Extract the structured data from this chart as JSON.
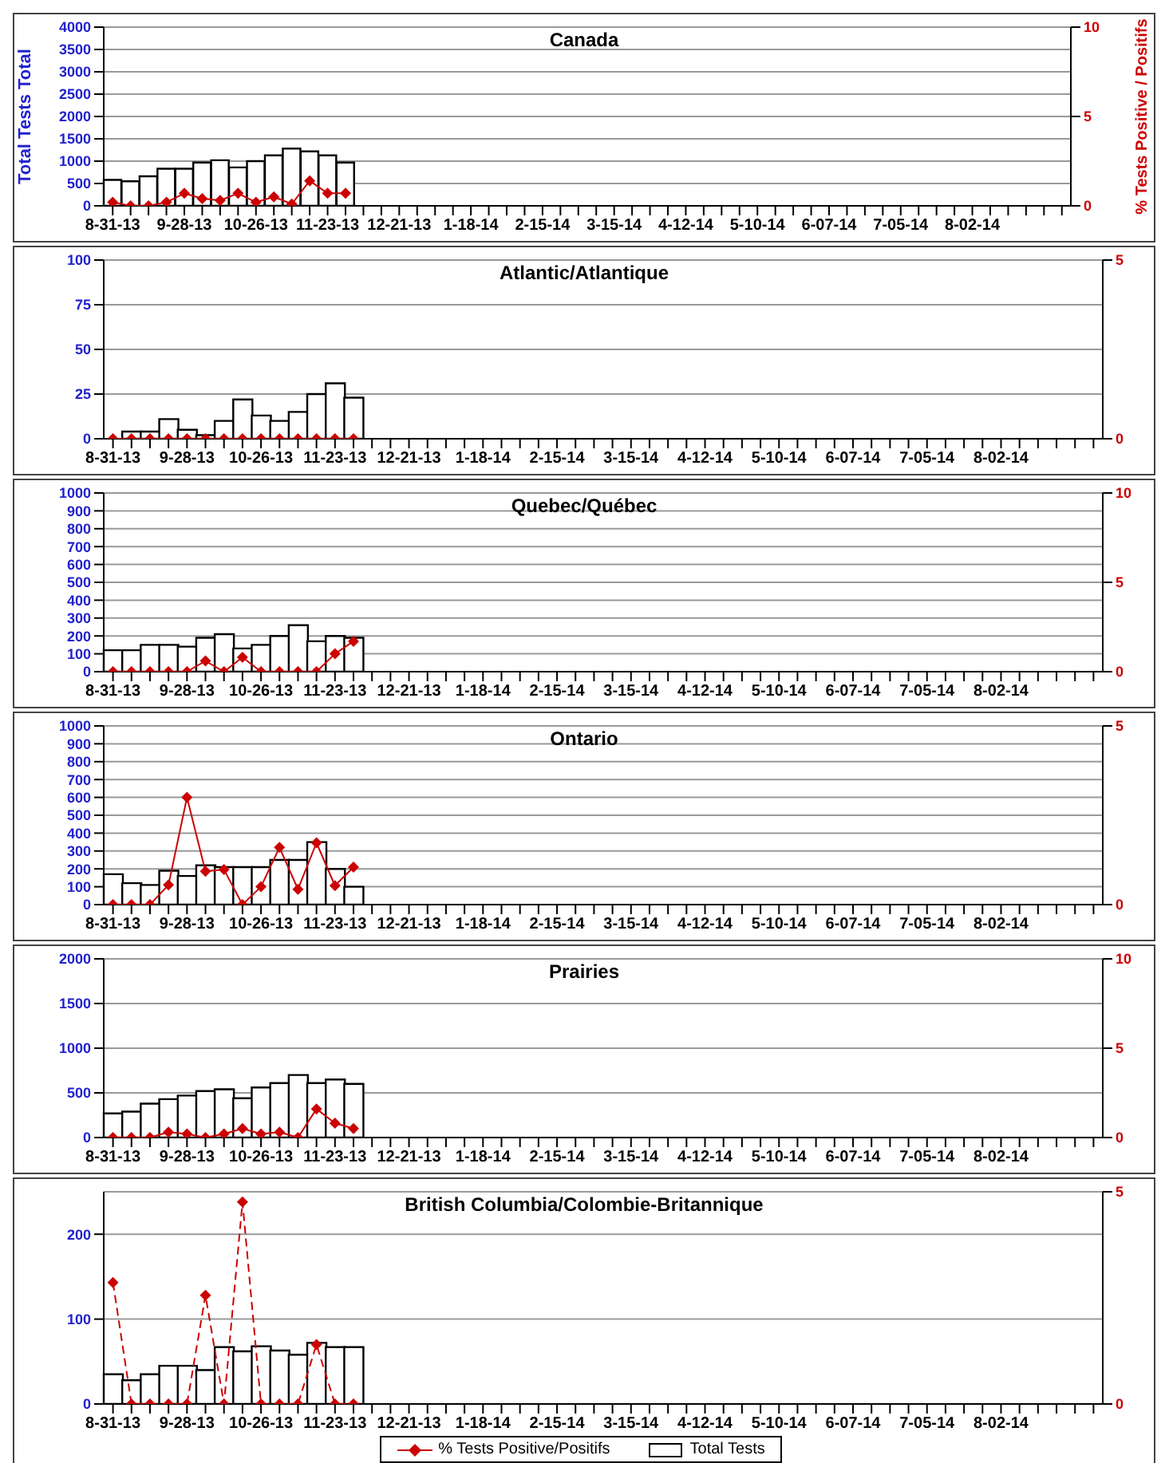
{
  "chart_data": [
    {
      "type": "bar",
      "title": "Canada",
      "ylabel": "Total Tests Total",
      "y2label": "% Tests Positive / Positifs",
      "categories": [
        "8-31-13",
        null,
        null,
        null,
        "9-28-13",
        null,
        null,
        null,
        "10-26-13",
        null,
        null,
        null,
        "11-23-13",
        null,
        null,
        null,
        "12-21-13",
        null,
        null,
        null,
        "1-18-14",
        null,
        null,
        null,
        "2-15-14",
        null,
        null,
        null,
        "3-15-14",
        null,
        null,
        null,
        "4-12-14",
        null,
        null,
        null,
        "5-10-14",
        null,
        null,
        null,
        "6-07-14",
        null,
        null,
        null,
        "7-05-14",
        null,
        null,
        null,
        "8-02-14",
        null,
        null,
        null,
        null,
        null
      ],
      "ylim": [
        0,
        4000
      ],
      "yticks": [
        0,
        500,
        1000,
        1500,
        2000,
        2500,
        3000,
        3500,
        4000
      ],
      "y2lim": [
        0,
        10
      ],
      "y2ticks": [
        0,
        5,
        10
      ],
      "grid": "y",
      "series": [
        {
          "color": "#ffffff",
          "values": [
            580,
            550,
            660,
            830,
            830,
            970,
            1020,
            860,
            1000,
            1130,
            1280,
            1220,
            1130,
            970,
            null,
            null,
            null,
            null,
            null,
            null,
            null,
            null,
            null,
            null,
            null,
            null,
            null,
            null,
            null,
            null,
            null,
            null,
            null,
            null,
            null,
            null,
            null,
            null,
            null,
            null,
            null,
            null,
            null,
            null,
            null,
            null,
            null,
            null,
            null,
            null,
            null,
            null,
            null,
            null
          ]
        },
        {
          "type": "line",
          "axis": "y2",
          "color": "#cc0000",
          "marker": "diamond",
          "line_style": "solid",
          "values": [
            0.2,
            0,
            0,
            0.2,
            0.7,
            0.4,
            0.3,
            0.7,
            0.2,
            0.5,
            0.1,
            1.4,
            0.7,
            0.7,
            null,
            null,
            null,
            null,
            null,
            null,
            null,
            null,
            null,
            null,
            null,
            null,
            null,
            null,
            null,
            null,
            null,
            null,
            null,
            null,
            null,
            null,
            null,
            null,
            null,
            null,
            null,
            null,
            null,
            null,
            null,
            null,
            null,
            null,
            null,
            null,
            null,
            null,
            null,
            null
          ]
        }
      ]
    },
    {
      "type": "bar",
      "title": "Atlantic/Atlantique",
      "categories": [
        "8-31-13",
        null,
        null,
        null,
        "9-28-13",
        null,
        null,
        null,
        "10-26-13",
        null,
        null,
        null,
        "11-23-13",
        null,
        null,
        null,
        "12-21-13",
        null,
        null,
        null,
        "1-18-14",
        null,
        null,
        null,
        "2-15-14",
        null,
        null,
        null,
        "3-15-14",
        null,
        null,
        null,
        "4-12-14",
        null,
        null,
        null,
        "5-10-14",
        null,
        null,
        null,
        "6-07-14",
        null,
        null,
        null,
        "7-05-14",
        null,
        null,
        null,
        "8-02-14",
        null,
        null,
        null,
        null,
        null
      ],
      "ylim": [
        0,
        100
      ],
      "yticks": [
        0,
        25,
        50,
        75,
        100
      ],
      "y2lim": [
        0,
        5
      ],
      "y2ticks": [
        0,
        5
      ],
      "grid": "y",
      "series": [
        {
          "color": "#ffffff",
          "values": [
            null,
            4,
            4,
            11,
            5,
            2,
            10,
            22,
            13,
            10,
            15,
            25,
            31,
            23,
            null,
            null,
            null,
            null,
            null,
            null,
            null,
            null,
            null,
            null,
            null,
            null,
            null,
            null,
            null,
            null,
            null,
            null,
            null,
            null,
            null,
            null,
            null,
            null,
            null,
            null,
            null,
            null,
            null,
            null,
            null,
            null,
            null,
            null,
            null,
            null,
            null,
            null,
            null,
            null
          ]
        },
        {
          "type": "line",
          "axis": "y2",
          "color": "#cc0000",
          "marker": "diamond",
          "line_style": "solid",
          "values": [
            0,
            0,
            0,
            0,
            0,
            0,
            0,
            0,
            0,
            0,
            0,
            0,
            0,
            0,
            null,
            null,
            null,
            null,
            null,
            null,
            null,
            null,
            null,
            null,
            null,
            null,
            null,
            null,
            null,
            null,
            null,
            null,
            null,
            null,
            null,
            null,
            null,
            null,
            null,
            null,
            null,
            null,
            null,
            null,
            null,
            null,
            null,
            null,
            null,
            null,
            null,
            null,
            null,
            null
          ]
        }
      ]
    },
    {
      "type": "bar",
      "title": "Quebec/Québec",
      "categories": [
        "8-31-13",
        null,
        null,
        null,
        "9-28-13",
        null,
        null,
        null,
        "10-26-13",
        null,
        null,
        null,
        "11-23-13",
        null,
        null,
        null,
        "12-21-13",
        null,
        null,
        null,
        "1-18-14",
        null,
        null,
        null,
        "2-15-14",
        null,
        null,
        null,
        "3-15-14",
        null,
        null,
        null,
        "4-12-14",
        null,
        null,
        null,
        "5-10-14",
        null,
        null,
        null,
        "6-07-14",
        null,
        null,
        null,
        "7-05-14",
        null,
        null,
        null,
        "8-02-14",
        null,
        null,
        null,
        null,
        null
      ],
      "ylim": [
        0,
        1000
      ],
      "yticks": [
        0,
        100,
        200,
        300,
        400,
        500,
        600,
        700,
        800,
        900,
        1000
      ],
      "y2lim": [
        0,
        10
      ],
      "y2ticks": [
        0,
        5,
        10
      ],
      "grid": "y",
      "series": [
        {
          "color": "#ffffff",
          "values": [
            120,
            120,
            150,
            150,
            140,
            190,
            210,
            130,
            150,
            200,
            260,
            170,
            200,
            190,
            null,
            null,
            null,
            null,
            null,
            null,
            null,
            null,
            null,
            null,
            null,
            null,
            null,
            null,
            null,
            null,
            null,
            null,
            null,
            null,
            null,
            null,
            null,
            null,
            null,
            null,
            null,
            null,
            null,
            null,
            null,
            null,
            null,
            null,
            null,
            null,
            null,
            null,
            null,
            null
          ]
        },
        {
          "type": "line",
          "axis": "y2",
          "color": "#cc0000",
          "marker": "diamond",
          "line_style": "solid",
          "values": [
            0,
            0,
            0,
            0,
            0,
            0.6,
            0,
            0.8,
            0,
            0,
            0,
            0,
            1.0,
            1.7,
            null,
            null,
            null,
            null,
            null,
            null,
            null,
            null,
            null,
            null,
            null,
            null,
            null,
            null,
            null,
            null,
            null,
            null,
            null,
            null,
            null,
            null,
            null,
            null,
            null,
            null,
            null,
            null,
            null,
            null,
            null,
            null,
            null,
            null,
            null,
            null,
            null,
            null,
            null,
            null
          ]
        }
      ]
    },
    {
      "type": "bar",
      "title": "Ontario",
      "categories": [
        "8-31-13",
        null,
        null,
        null,
        "9-28-13",
        null,
        null,
        null,
        "10-26-13",
        null,
        null,
        null,
        "11-23-13",
        null,
        null,
        null,
        "12-21-13",
        null,
        null,
        null,
        "1-18-14",
        null,
        null,
        null,
        "2-15-14",
        null,
        null,
        null,
        "3-15-14",
        null,
        null,
        null,
        "4-12-14",
        null,
        null,
        null,
        "5-10-14",
        null,
        null,
        null,
        "6-07-14",
        null,
        null,
        null,
        "7-05-14",
        null,
        null,
        null,
        "8-02-14",
        null,
        null,
        null,
        null,
        null
      ],
      "ylim": [
        0,
        1000
      ],
      "yticks": [
        0,
        100,
        200,
        300,
        400,
        500,
        600,
        700,
        800,
        900,
        1000
      ],
      "y2lim": [
        0,
        5
      ],
      "y2ticks": [
        0,
        5
      ],
      "grid": "y",
      "series": [
        {
          "color": "#ffffff",
          "values": [
            170,
            120,
            110,
            190,
            160,
            220,
            210,
            210,
            210,
            250,
            250,
            350,
            200,
            100,
            null,
            null,
            null,
            null,
            null,
            null,
            null,
            null,
            null,
            null,
            null,
            null,
            null,
            null,
            null,
            null,
            null,
            null,
            null,
            null,
            null,
            null,
            null,
            null,
            null,
            null,
            null,
            null,
            null,
            null,
            null,
            null,
            null,
            null,
            null,
            null,
            null,
            null,
            null,
            null
          ]
        },
        {
          "type": "line",
          "axis": "y2",
          "color": "#cc0000",
          "marker": "diamond",
          "line_style": "solid",
          "values": [
            0,
            0,
            0,
            0.55,
            3.0,
            0.93,
            0.98,
            0,
            0.5,
            1.6,
            0.43,
            1.73,
            0.53,
            1.05,
            null,
            null,
            null,
            null,
            null,
            null,
            null,
            null,
            null,
            null,
            null,
            null,
            null,
            null,
            null,
            null,
            null,
            null,
            null,
            null,
            null,
            null,
            null,
            null,
            null,
            null,
            null,
            null,
            null,
            null,
            null,
            null,
            null,
            null,
            null,
            null,
            null,
            null,
            null,
            null
          ]
        }
      ]
    },
    {
      "type": "bar",
      "title": "Prairies",
      "categories": [
        "8-31-13",
        null,
        null,
        null,
        "9-28-13",
        null,
        null,
        null,
        "10-26-13",
        null,
        null,
        null,
        "11-23-13",
        null,
        null,
        null,
        "12-21-13",
        null,
        null,
        null,
        "1-18-14",
        null,
        null,
        null,
        "2-15-14",
        null,
        null,
        null,
        "3-15-14",
        null,
        null,
        null,
        "4-12-14",
        null,
        null,
        null,
        "5-10-14",
        null,
        null,
        null,
        "6-07-14",
        null,
        null,
        null,
        "7-05-14",
        null,
        null,
        null,
        "8-02-14",
        null,
        null,
        null,
        null,
        null
      ],
      "ylim": [
        0,
        2000
      ],
      "yticks": [
        0,
        500,
        1000,
        1500,
        2000
      ],
      "y2lim": [
        0,
        10
      ],
      "y2ticks": [
        0,
        5,
        10
      ],
      "grid": "y",
      "series": [
        {
          "color": "#ffffff",
          "values": [
            270,
            290,
            380,
            430,
            470,
            520,
            540,
            440,
            560,
            610,
            700,
            610,
            650,
            600,
            null,
            null,
            null,
            null,
            null,
            null,
            null,
            null,
            null,
            null,
            null,
            null,
            null,
            null,
            null,
            null,
            null,
            null,
            null,
            null,
            null,
            null,
            null,
            null,
            null,
            null,
            null,
            null,
            null,
            null,
            null,
            null,
            null,
            null,
            null,
            null,
            null,
            null,
            null,
            null
          ]
        },
        {
          "type": "line",
          "axis": "y2",
          "color": "#cc0000",
          "marker": "diamond",
          "line_style": "solid",
          "values": [
            0,
            0,
            0,
            0.3,
            0.2,
            0,
            0.2,
            0.5,
            0.2,
            0.3,
            0,
            1.6,
            0.8,
            0.5,
            null,
            null,
            null,
            null,
            null,
            null,
            null,
            null,
            null,
            null,
            null,
            null,
            null,
            null,
            null,
            null,
            null,
            null,
            null,
            null,
            null,
            null,
            null,
            null,
            null,
            null,
            null,
            null,
            null,
            null,
            null,
            null,
            null,
            null,
            null,
            null,
            null,
            null,
            null,
            null
          ]
        }
      ]
    },
    {
      "type": "bar",
      "title": "British Columbia/Colombie-Britannique",
      "categories": [
        "8-31-13",
        null,
        null,
        null,
        "9-28-13",
        null,
        null,
        null,
        "10-26-13",
        null,
        null,
        null,
        "11-23-13",
        null,
        null,
        null,
        "12-21-13",
        null,
        null,
        null,
        "1-18-14",
        null,
        null,
        null,
        "2-15-14",
        null,
        null,
        null,
        "3-15-14",
        null,
        null,
        null,
        "4-12-14",
        null,
        null,
        null,
        "5-10-14",
        null,
        null,
        null,
        "6-07-14",
        null,
        null,
        null,
        "7-05-14",
        null,
        null,
        null,
        "8-02-14",
        null,
        null,
        null,
        null,
        null
      ],
      "ylim": [
        0,
        250
      ],
      "yticks": [
        0,
        100,
        200
      ],
      "y2lim": [
        0,
        5
      ],
      "y2ticks": [
        0,
        5
      ],
      "grid": "y",
      "legend": "bottom",
      "series": [
        {
          "name": "Total Tests",
          "color": "#ffffff",
          "values": [
            35,
            28,
            35,
            45,
            45,
            40,
            67,
            62,
            68,
            63,
            58,
            72,
            67,
            67,
            null,
            null,
            null,
            null,
            null,
            null,
            null,
            null,
            null,
            null,
            null,
            null,
            null,
            null,
            null,
            null,
            null,
            null,
            null,
            null,
            null,
            null,
            null,
            null,
            null,
            null,
            null,
            null,
            null,
            null,
            null,
            null,
            null,
            null,
            null,
            null,
            null,
            null,
            null,
            null
          ]
        },
        {
          "type": "line",
          "name": "% Tests Positive/Positifs",
          "axis": "y2",
          "color": "#cc0000",
          "marker": "diamond",
          "line_style": "dashed",
          "values": [
            2.86,
            0,
            0,
            0,
            0,
            2.56,
            0,
            4.76,
            0,
            0,
            0,
            1.4,
            0,
            0,
            null,
            null,
            null,
            null,
            null,
            null,
            null,
            null,
            null,
            null,
            null,
            null,
            null,
            null,
            null,
            null,
            null,
            null,
            null,
            null,
            null,
            null,
            null,
            null,
            null,
            null,
            null,
            null,
            null,
            null,
            null,
            null,
            null,
            null,
            null,
            null,
            null,
            null,
            null,
            null
          ]
        }
      ]
    }
  ]
}
